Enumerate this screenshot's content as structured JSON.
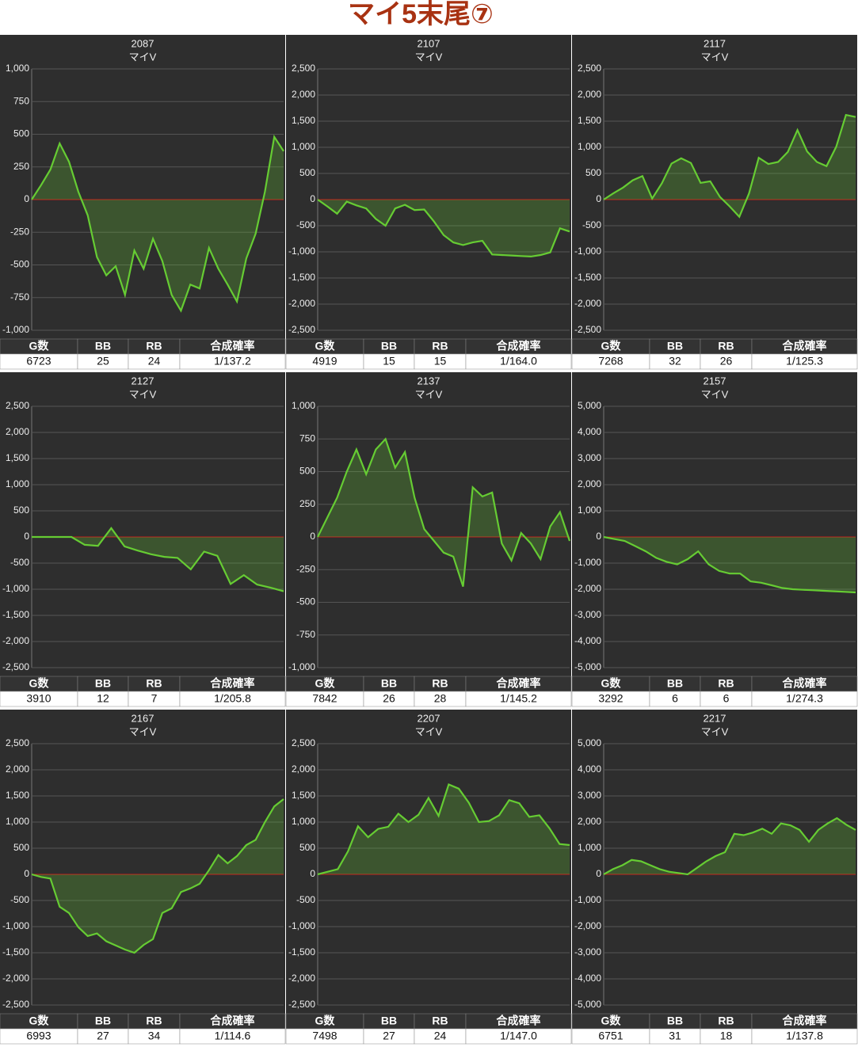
{
  "title": "マイ5末尾⑦",
  "chart_data": [
    {
      "type": "line",
      "title": "2087",
      "subtitle": "マイV",
      "color": "#66cc33",
      "grid": true,
      "ylim": [
        -1000,
        1000
      ],
      "yticks": [
        {
          "value": -1000,
          "label": "-1,000"
        },
        -750,
        -500,
        -250,
        0,
        250,
        500,
        750,
        {
          "value": 1000,
          "label": "1,000"
        }
      ],
      "values": [
        0,
        110,
        230,
        430,
        290,
        60,
        -120,
        -440,
        -580,
        -510,
        -730,
        -390,
        -530,
        -300,
        -470,
        -730,
        -850,
        -650,
        -680,
        -370,
        -530,
        -650,
        -780,
        -450,
        -260,
        60,
        480,
        370
      ],
      "table": {
        "headers": [
          "G数",
          "BB",
          "RB",
          "合成確率"
        ],
        "row": [
          6723,
          25,
          24,
          "1/137.2"
        ]
      }
    },
    {
      "type": "line",
      "title": "2107",
      "subtitle": "マイV",
      "color": "#66cc33",
      "grid": true,
      "ylim": [
        -2500,
        2500
      ],
      "yticks": [
        {
          "value": -2500,
          "label": "-2,500"
        },
        {
          "value": -2000,
          "label": "-2,000"
        },
        {
          "value": -1500,
          "label": "-1,500"
        },
        {
          "value": -1000,
          "label": "-1,000"
        },
        -500,
        0,
        500,
        {
          "value": 1000,
          "label": "1,000"
        },
        {
          "value": 1500,
          "label": "1,500"
        },
        {
          "value": 2000,
          "label": "2,000"
        },
        {
          "value": 2500,
          "label": "2,500"
        }
      ],
      "values": [
        0,
        -130,
        -270,
        -40,
        -110,
        -170,
        -370,
        -500,
        -170,
        -100,
        -200,
        -190,
        -420,
        -680,
        -820,
        -870,
        -820,
        -790,
        -1050,
        -1060,
        -1070,
        -1080,
        -1090,
        -1060,
        -1010,
        -550,
        -610
      ],
      "table": {
        "headers": [
          "G数",
          "BB",
          "RB",
          "合成確率"
        ],
        "row": [
          4919,
          15,
          15,
          "1/164.0"
        ]
      }
    },
    {
      "type": "line",
      "title": "2117",
      "subtitle": "マイV",
      "color": "#66cc33",
      "grid": true,
      "ylim": [
        -2500,
        2500
      ],
      "yticks": [
        {
          "value": -2500,
          "label": "-2,500"
        },
        {
          "value": -2000,
          "label": "-2,000"
        },
        {
          "value": -1500,
          "label": "-1,500"
        },
        {
          "value": -1000,
          "label": "-1,000"
        },
        -500,
        0,
        500,
        {
          "value": 1000,
          "label": "1,000"
        },
        {
          "value": 1500,
          "label": "1,500"
        },
        {
          "value": 2000,
          "label": "2,000"
        },
        {
          "value": 2500,
          "label": "2,500"
        }
      ],
      "values": [
        0,
        120,
        230,
        370,
        450,
        20,
        310,
        690,
        790,
        700,
        320,
        350,
        50,
        -130,
        -330,
        120,
        800,
        680,
        720,
        910,
        1330,
        920,
        720,
        640,
        1010,
        1620,
        1580
      ],
      "table": {
        "headers": [
          "G数",
          "BB",
          "RB",
          "合成確率"
        ],
        "row": [
          7268,
          32,
          26,
          "1/125.3"
        ]
      }
    },
    {
      "type": "line",
      "title": "2127",
      "subtitle": "マイV",
      "color": "#66cc33",
      "grid": true,
      "ylim": [
        -2500,
        2500
      ],
      "yticks": [
        {
          "value": -2500,
          "label": "-2,500"
        },
        {
          "value": -2000,
          "label": "-2,000"
        },
        {
          "value": -1500,
          "label": "-1,500"
        },
        {
          "value": -1000,
          "label": "-1,000"
        },
        -500,
        0,
        500,
        {
          "value": 1000,
          "label": "1,000"
        },
        {
          "value": 1500,
          "label": "1,500"
        },
        {
          "value": 2000,
          "label": "2,000"
        },
        {
          "value": 2500,
          "label": "2,500"
        }
      ],
      "values": [
        0,
        0,
        0,
        0,
        -150,
        -170,
        170,
        -180,
        -260,
        -330,
        -380,
        -400,
        -620,
        -280,
        -360,
        -900,
        -730,
        -910,
        -970,
        -1040
      ],
      "table": {
        "headers": [
          "G数",
          "BB",
          "RB",
          "合成確率"
        ],
        "row": [
          3910,
          12,
          7,
          "1/205.8"
        ]
      }
    },
    {
      "type": "line",
      "title": "2137",
      "subtitle": "マイV",
      "color": "#66cc33",
      "grid": true,
      "ylim": [
        -1000,
        1000
      ],
      "yticks": [
        {
          "value": -1000,
          "label": "-1,000"
        },
        -750,
        -500,
        -250,
        0,
        250,
        500,
        750,
        {
          "value": 1000,
          "label": "1,000"
        }
      ],
      "values": [
        0,
        150,
        300,
        500,
        670,
        480,
        670,
        750,
        530,
        650,
        300,
        60,
        -30,
        -120,
        -150,
        -380,
        380,
        310,
        340,
        -50,
        -180,
        30,
        -50,
        -170,
        80,
        190,
        -30
      ],
      "table": {
        "headers": [
          "G数",
          "BB",
          "RB",
          "合成確率"
        ],
        "row": [
          7842,
          26,
          28,
          "1/145.2"
        ]
      }
    },
    {
      "type": "line",
      "title": "2157",
      "subtitle": "マイV",
      "color": "#66cc33",
      "grid": true,
      "ylim": [
        -5000,
        5000
      ],
      "yticks": [
        {
          "value": -5000,
          "label": "-5,000"
        },
        {
          "value": -4000,
          "label": "-4,000"
        },
        {
          "value": -3000,
          "label": "-3,000"
        },
        {
          "value": -2000,
          "label": "-2,000"
        },
        {
          "value": -1000,
          "label": "-1,000"
        },
        0,
        {
          "value": 1000,
          "label": "1,000"
        },
        {
          "value": 2000,
          "label": "2,000"
        },
        {
          "value": 3000,
          "label": "3,000"
        },
        {
          "value": 4000,
          "label": "4,000"
        },
        {
          "value": 5000,
          "label": "5,000"
        }
      ],
      "values": [
        0,
        -80,
        -150,
        -350,
        -550,
        -800,
        -950,
        -1050,
        -850,
        -550,
        -1050,
        -1300,
        -1400,
        -1400,
        -1700,
        -1750,
        -1850,
        -1950,
        -2000,
        -2020,
        -2040,
        -2060,
        -2080,
        -2100,
        -2120
      ],
      "table": {
        "headers": [
          "G数",
          "BB",
          "RB",
          "合成確率"
        ],
        "row": [
          3292,
          6,
          6,
          "1/274.3"
        ]
      }
    },
    {
      "type": "line",
      "title": "2167",
      "subtitle": "マイV",
      "color": "#66cc33",
      "grid": true,
      "ylim": [
        -2500,
        2500
      ],
      "yticks": [
        {
          "value": -2500,
          "label": "-2,500"
        },
        {
          "value": -2000,
          "label": "-2,000"
        },
        {
          "value": -1500,
          "label": "-1,500"
        },
        {
          "value": -1000,
          "label": "-1,000"
        },
        -500,
        0,
        500,
        {
          "value": 1000,
          "label": "1,000"
        },
        {
          "value": 1500,
          "label": "1,500"
        },
        {
          "value": 2000,
          "label": "2,000"
        },
        {
          "value": 2500,
          "label": "2,500"
        }
      ],
      "values": [
        0,
        -50,
        -80,
        -620,
        -740,
        -1010,
        -1180,
        -1130,
        -1280,
        -1360,
        -1440,
        -1500,
        -1350,
        -1240,
        -740,
        -650,
        -340,
        -270,
        -180,
        80,
        370,
        210,
        350,
        560,
        660,
        1000,
        1300,
        1440
      ],
      "table": {
        "headers": [
          "G数",
          "BB",
          "RB",
          "合成確率"
        ],
        "row": [
          6993,
          27,
          34,
          "1/114.6"
        ]
      }
    },
    {
      "type": "line",
      "title": "2207",
      "subtitle": "マイV",
      "color": "#66cc33",
      "grid": true,
      "ylim": [
        -2500,
        2500
      ],
      "yticks": [
        {
          "value": -2500,
          "label": "-2,500"
        },
        {
          "value": -2000,
          "label": "-2,000"
        },
        {
          "value": -1500,
          "label": "-1,500"
        },
        {
          "value": -1000,
          "label": "-1,000"
        },
        -500,
        0,
        500,
        {
          "value": 1000,
          "label": "1,000"
        },
        {
          "value": 1500,
          "label": "1,500"
        },
        {
          "value": 2000,
          "label": "2,000"
        },
        {
          "value": 2500,
          "label": "2,500"
        }
      ],
      "values": [
        0,
        50,
        100,
        440,
        920,
        710,
        870,
        910,
        1160,
        1000,
        1140,
        1460,
        1120,
        1720,
        1640,
        1370,
        1000,
        1020,
        1130,
        1420,
        1360,
        1100,
        1130,
        880,
        580,
        560
      ],
      "table": {
        "headers": [
          "G数",
          "BB",
          "RB",
          "合成確率"
        ],
        "row": [
          7498,
          27,
          24,
          "1/147.0"
        ]
      }
    },
    {
      "type": "line",
      "title": "2217",
      "subtitle": "マイV",
      "color": "#66cc33",
      "grid": true,
      "ylim": [
        -5000,
        5000
      ],
      "yticks": [
        {
          "value": -5000,
          "label": "-5,000"
        },
        {
          "value": -4000,
          "label": "-4,000"
        },
        {
          "value": -3000,
          "label": "-3,000"
        },
        {
          "value": -2000,
          "label": "-2,000"
        },
        {
          "value": -1000,
          "label": "-1,000"
        },
        0,
        {
          "value": 1000,
          "label": "1,000"
        },
        {
          "value": 2000,
          "label": "2,000"
        },
        {
          "value": 3000,
          "label": "3,000"
        },
        {
          "value": 4000,
          "label": "4,000"
        },
        {
          "value": 5000,
          "label": "5,000"
        }
      ],
      "values": [
        0,
        200,
        350,
        550,
        500,
        350,
        200,
        100,
        50,
        0,
        250,
        500,
        700,
        850,
        1550,
        1500,
        1600,
        1750,
        1550,
        1950,
        1880,
        1700,
        1250,
        1700,
        1950,
        2150,
        1900,
        1700
      ],
      "table": {
        "headers": [
          "G数",
          "BB",
          "RB",
          "合成確率"
        ],
        "row": [
          6751,
          31,
          18,
          "1/137.8"
        ]
      }
    }
  ]
}
